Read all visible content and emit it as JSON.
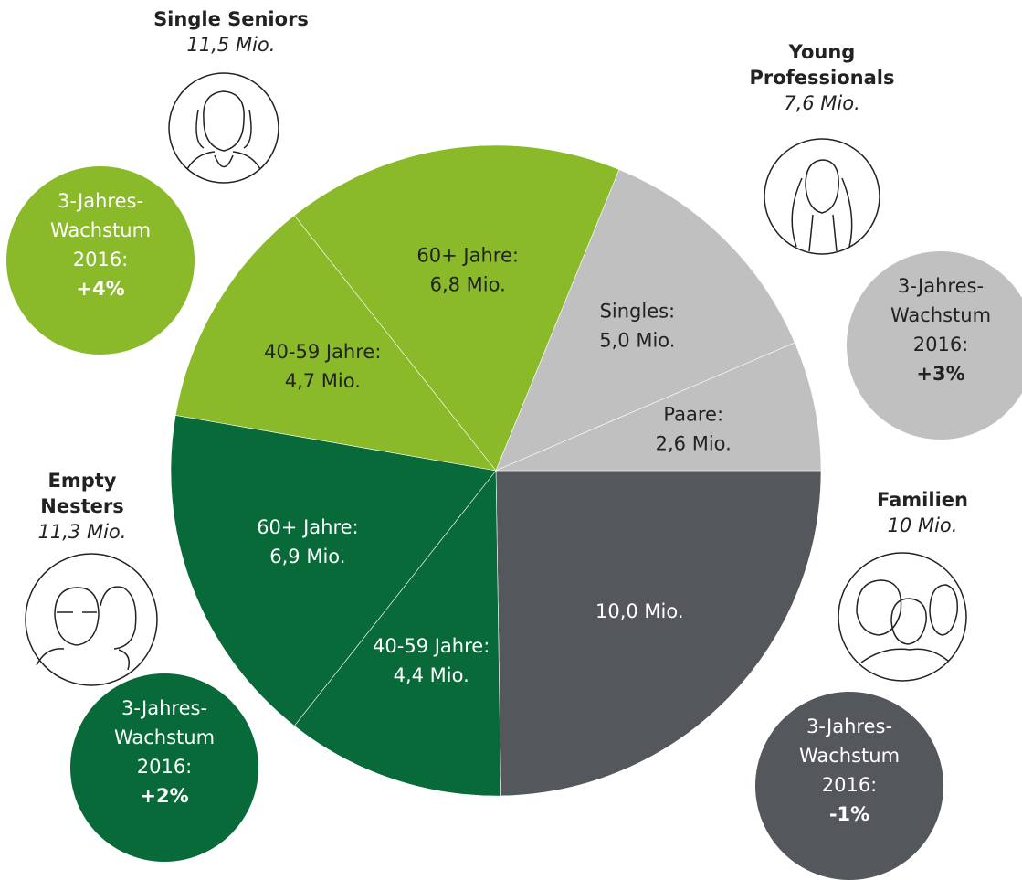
{
  "chart_data": {
    "type": "pie",
    "categories": [
      null,
      "40-59 Jahre:",
      "60+ Jahre:",
      "40-59 Jahre:",
      "60+ Jahre:",
      "Singles:",
      "Paare:"
    ],
    "values": [
      10.0,
      4.4,
      6.9,
      4.7,
      6.8,
      5.0,
      2.6
    ],
    "value_labels": [
      "10,0 Mio.",
      "4,4 Mio.",
      "6,9 Mio.",
      "4,7 Mio.",
      "6,8 Mio.",
      "5,0 Mio.",
      "2,6 Mio."
    ],
    "colors": [
      "#54575b",
      "#076a38",
      "#076a38",
      "#8aba2a",
      "#8aba2a",
      "#c0c0c0",
      "#c0c0c0"
    ],
    "groups": [
      {
        "name": [
          "Single Seniors"
        ],
        "total": "11,5 Mio.",
        "growth_text": [
          "3-Jahres-",
          "Wachstum",
          "2016:"
        ],
        "growth": "+4%",
        "color": "#8aba2a"
      },
      {
        "name": [
          "Young",
          "Professionals"
        ],
        "total": "7,6 Mio.",
        "growth_text": [
          "3-Jahres-",
          "Wachstum",
          "2016:"
        ],
        "growth": "+3%",
        "color": "#c0c0c0"
      },
      {
        "name": [
          "Empty",
          "Nesters"
        ],
        "total": "11,3 Mio.",
        "growth_text": [
          "3-Jahres-",
          "Wachstum",
          "2016:"
        ],
        "growth": "+2%",
        "color": "#076a38"
      },
      {
        "name": [
          "Familien"
        ],
        "total": "10 Mio.",
        "growth_text": [
          "3-Jahres-",
          "Wachstum",
          "2016:"
        ],
        "growth": "-1%",
        "color": "#54575b"
      }
    ]
  }
}
